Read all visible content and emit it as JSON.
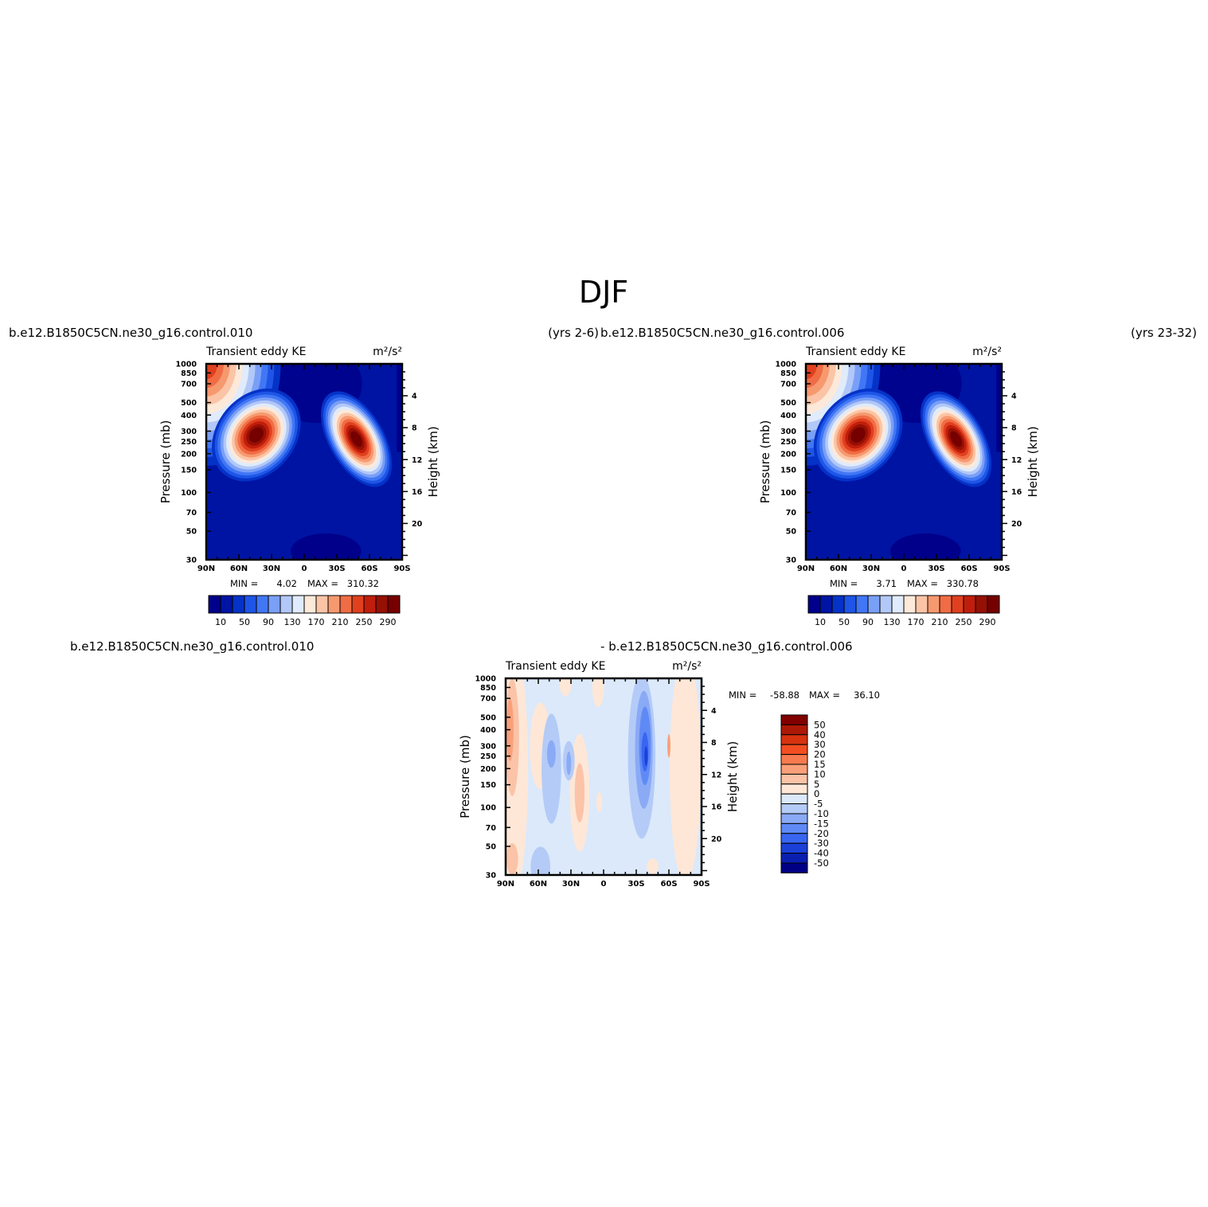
{
  "page_title": "DJF",
  "case_a": "b.e12.B1850C5CN.ne30_g16.control.010",
  "case_b": "b.e12.B1850C5CN.ne30_g16.control.006",
  "years_a": "(yrs 2-6)",
  "years_b": "(yrs 23-32)",
  "diff_prefix": "- ",
  "axis_labels": {
    "pressure": "Pressure  (mb)",
    "height": "Height  (km)"
  },
  "lat_ticks": [
    "90N",
    "60N",
    "30N",
    "0",
    "30S",
    "60S",
    "90S"
  ],
  "pressure_ticks": [
    "30",
    "50",
    "70",
    "100",
    "150",
    "200",
    "250",
    "300",
    "400",
    "500",
    "700",
    "850",
    "1000"
  ],
  "height_ticks": [
    "4",
    "8",
    "12",
    "16",
    "20"
  ],
  "chart_data": [
    {
      "type": "heatmap",
      "panel": "case_a",
      "title_left": "Transient eddy KE",
      "title_right": "m²/s²",
      "min_label": "MIN =",
      "min_value": "4.02",
      "max_label": "MAX =",
      "max_value": "310.32",
      "x_range": [
        90,
        -90
      ],
      "y_range": [
        1000,
        30
      ],
      "y_scale": "log",
      "colorbar": [
        "10",
        "50",
        "90",
        "130",
        "170",
        "210",
        "250",
        "290"
      ],
      "jets": [
        {
          "lat": 44,
          "p": 280,
          "max": 310.32
        },
        {
          "lat": -48,
          "p": 260,
          "max": 290
        }
      ]
    },
    {
      "type": "heatmap",
      "panel": "case_b",
      "title_left": "Transient eddy KE",
      "title_right": "m²/s²",
      "min_label": "MIN =",
      "min_value": "3.71",
      "max_label": "MAX =",
      "max_value": "330.78",
      "x_range": [
        90,
        -90
      ],
      "y_range": [
        1000,
        30
      ],
      "y_scale": "log",
      "colorbar": [
        "10",
        "50",
        "90",
        "130",
        "170",
        "210",
        "250",
        "290"
      ],
      "jets": [
        {
          "lat": 42,
          "p": 280,
          "max": 300
        },
        {
          "lat": -48,
          "p": 260,
          "max": 330.78
        }
      ]
    },
    {
      "type": "heatmap",
      "panel": "difference",
      "title_left": "Transient eddy KE",
      "title_right": "m²/s²",
      "min_label": "MIN =",
      "min_value": "-58.88",
      "max_label": "MAX =",
      "max_value": "36.10",
      "x_range": [
        90,
        -90
      ],
      "y_range": [
        1000,
        30
      ],
      "y_scale": "log",
      "colorbar": [
        "50",
        "40",
        "30",
        "20",
        "15",
        "10",
        "5",
        "0",
        "-5",
        "-10",
        "-15",
        "-20",
        "-30",
        "-40",
        "-50"
      ]
    }
  ],
  "colors": {
    "ke_levels": [
      "#00008a",
      "#0014a3",
      "#0532c7",
      "#1e55e6",
      "#4177f5",
      "#7a9ff7",
      "#b2c8f7",
      "#e0ebfb",
      "#fde9d9",
      "#fbc4a6",
      "#f7996e",
      "#f06c45",
      "#e0401e",
      "#c01e0c",
      "#961004",
      "#760000"
    ],
    "diff_levels": [
      "#810000",
      "#ad1907",
      "#d7330f",
      "#f24e22",
      "#f77b4f",
      "#f9a07a",
      "#fbc3a7",
      "#fee7d7",
      "#dbe9fb",
      "#b4cbf7",
      "#8aaaf6",
      "#5f8af6",
      "#3966f0",
      "#1b40d8",
      "#0a1fb0",
      "#000084"
    ]
  }
}
